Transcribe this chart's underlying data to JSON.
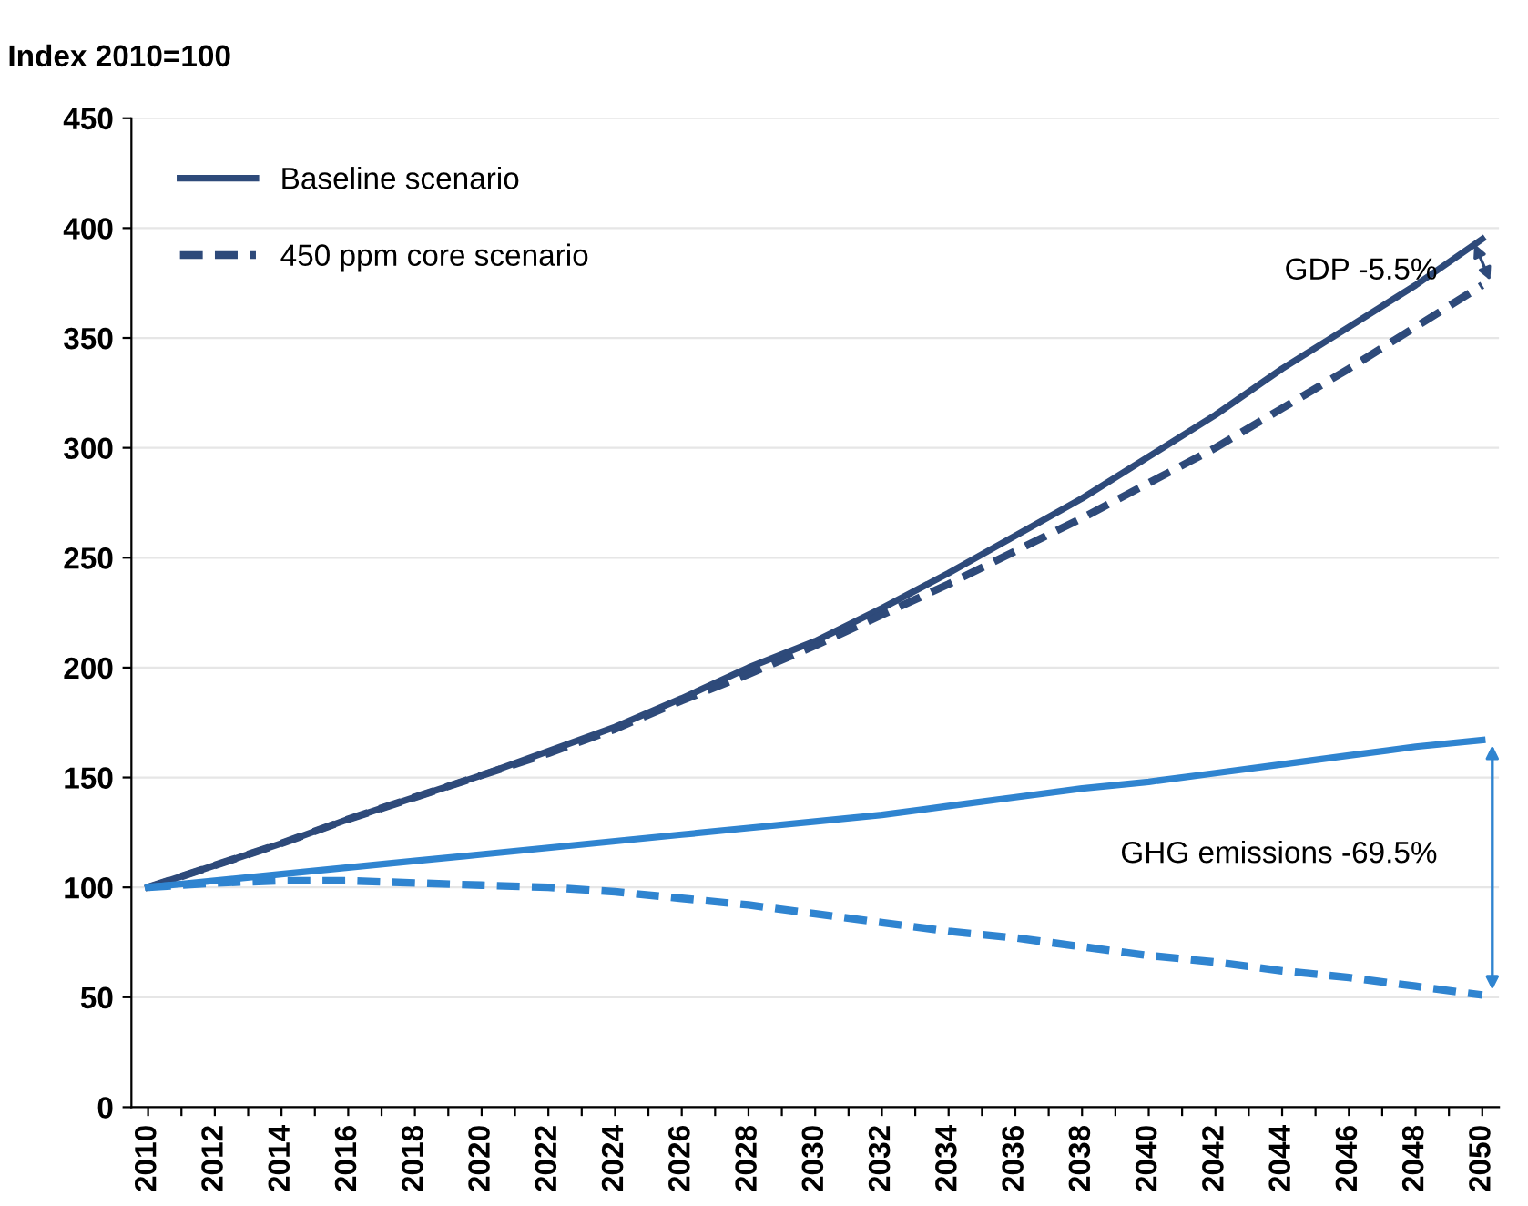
{
  "chart_data": {
    "type": "line",
    "ylabel": "Index 2010=100",
    "x": [
      2010,
      2012,
      2014,
      2016,
      2018,
      2020,
      2022,
      2024,
      2026,
      2028,
      2030,
      2032,
      2034,
      2036,
      2038,
      2040,
      2042,
      2044,
      2046,
      2048,
      2050
    ],
    "series": [
      {
        "name": "Baseline scenario",
        "color": "#2e4a7a",
        "line_style": "solid",
        "values": [
          100,
          110,
          120,
          131,
          141,
          151,
          162,
          173,
          186,
          200,
          212,
          227,
          243,
          260,
          277,
          296,
          315,
          336,
          355,
          374,
          395
        ]
      },
      {
        "name": "450 ppm core scenario",
        "color": "#2e4a7a",
        "line_style": "dashed",
        "values": [
          100,
          110,
          120,
          131,
          141,
          151,
          161,
          172,
          185,
          197,
          210,
          224,
          238,
          253,
          268,
          284,
          300,
          318,
          336,
          355,
          374
        ]
      },
      {
        "color": "#2f84d0",
        "line_style": "solid",
        "values": [
          100,
          103,
          106,
          109,
          112,
          115,
          118,
          121,
          124,
          127,
          130,
          133,
          137,
          141,
          145,
          148,
          152,
          156,
          160,
          164,
          167
        ]
      },
      {
        "color": "#2f84d0",
        "line_style": "dashed",
        "values": [
          100,
          102,
          103,
          103,
          102,
          101,
          100,
          98,
          95,
          92,
          88,
          84,
          80,
          77,
          73,
          69,
          66,
          62,
          59,
          55,
          51
        ]
      }
    ],
    "annotations": [
      "GDP -5.5%",
      "GHG emissions -69.5%"
    ],
    "xlim": [
      2009.5,
      2050.5
    ],
    "xticks": [
      2010,
      {
        "value": 2011,
        "label": null
      },
      2012,
      {
        "value": 2013,
        "label": null
      },
      2014,
      {
        "value": 2015,
        "label": null
      },
      2016,
      {
        "value": 2017,
        "label": null
      },
      2018,
      {
        "value": 2019,
        "label": null
      },
      2020,
      {
        "value": 2021,
        "label": null
      },
      2022,
      {
        "value": 2023,
        "label": null
      },
      2024,
      {
        "value": 2025,
        "label": null
      },
      2026,
      {
        "value": 2027,
        "label": null
      },
      2028,
      {
        "value": 2029,
        "label": null
      },
      2030,
      {
        "value": 2031,
        "label": null
      },
      2032,
      {
        "value": 2033,
        "label": null
      },
      2034,
      {
        "value": 2035,
        "label": null
      },
      2036,
      {
        "value": 2037,
        "label": null
      },
      2038,
      {
        "value": 2039,
        "label": null
      },
      2040,
      {
        "value": 2041,
        "label": null
      },
      2042,
      {
        "value": 2043,
        "label": null
      },
      2044,
      {
        "value": 2045,
        "label": null
      },
      2046,
      {
        "value": 2047,
        "label": null
      },
      2048,
      {
        "value": 2049,
        "label": null
      },
      2050
    ],
    "ylim": [
      0,
      450
    ],
    "yticks": [
      0,
      50,
      100,
      150,
      200,
      250,
      300,
      350,
      400,
      450
    ],
    "grid": "y",
    "legend": "top left",
    "marker": "none"
  }
}
